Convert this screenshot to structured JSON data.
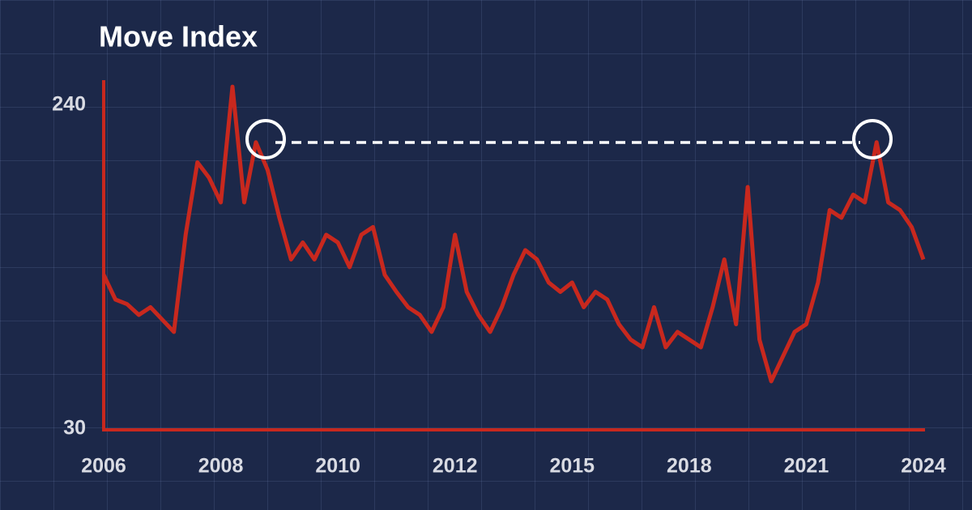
{
  "chart_data": {
    "type": "line",
    "title": "Move Index",
    "categories": [
      "2006",
      null,
      null,
      null,
      null,
      null,
      null,
      null,
      null,
      null,
      "2008",
      null,
      null,
      null,
      null,
      null,
      null,
      null,
      null,
      null,
      "2010",
      null,
      null,
      null,
      null,
      null,
      null,
      null,
      null,
      null,
      "2012",
      null,
      null,
      null,
      null,
      null,
      null,
      null,
      null,
      null,
      "2015",
      null,
      null,
      null,
      null,
      null,
      null,
      null,
      null,
      null,
      "2018",
      null,
      null,
      null,
      null,
      null,
      null,
      null,
      null,
      null,
      "2021",
      null,
      null,
      null,
      null,
      null,
      null,
      null,
      null,
      null,
      "2024"
    ],
    "values": [
      130,
      114,
      111,
      104,
      109,
      101,
      93,
      156,
      203,
      193,
      177,
      252,
      177,
      216,
      198,
      167,
      140,
      151,
      140,
      156,
      151,
      135,
      156,
      161,
      130,
      119,
      109,
      104,
      93,
      109,
      156,
      119,
      104,
      93,
      109,
      130,
      146,
      140,
      125,
      119,
      125,
      109,
      119,
      114,
      98,
      88,
      83,
      109,
      83,
      93,
      88,
      83,
      109,
      140,
      98,
      187,
      88,
      61,
      77,
      93,
      98,
      125,
      172,
      167,
      182,
      177,
      216,
      177,
      172,
      161,
      140
    ],
    "color": "#c8281e",
    "ylim": [
      30,
      256
    ],
    "yticks": [
      30,
      240
    ]
  }
}
